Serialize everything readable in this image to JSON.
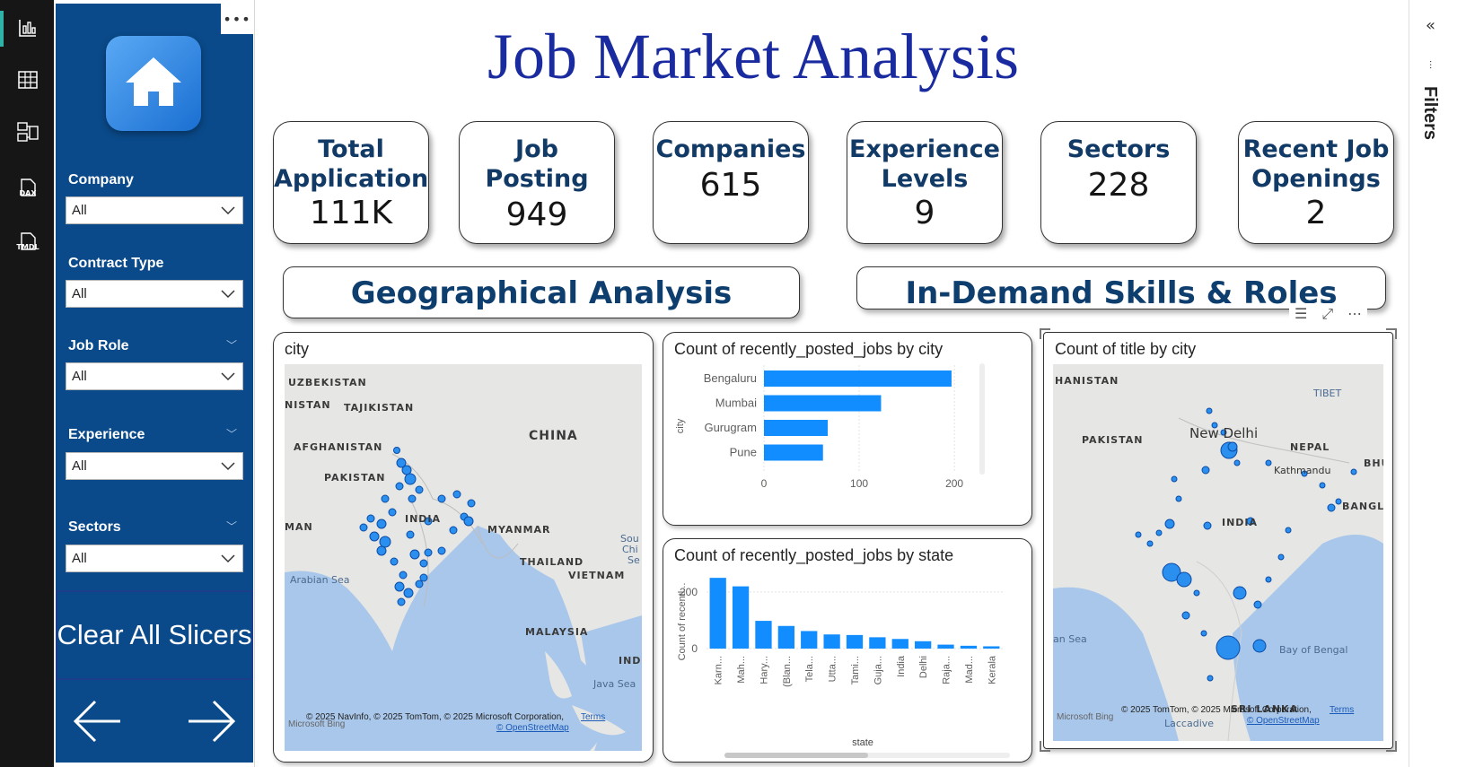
{
  "report": {
    "title": "Job Market Analysis"
  },
  "filters_pane": {
    "label": "Filters"
  },
  "slicers": [
    {
      "label": "Company",
      "value": "All"
    },
    {
      "label": "Contract Type",
      "value": "All"
    },
    {
      "label": "Job Role",
      "value": "All"
    },
    {
      "label": "Experience",
      "value": "All"
    },
    {
      "label": "Sectors",
      "value": "All"
    }
  ],
  "clear_button": {
    "label": "Clear All Slicers"
  },
  "rail": {
    "dax": "DAX",
    "tmdl": "TMDL"
  },
  "kpis": [
    {
      "label": "Total Application",
      "value": "111K"
    },
    {
      "label": "Job Posting",
      "value": "949"
    },
    {
      "label": "Companies",
      "value": "615"
    },
    {
      "label": "Experience Levels",
      "value": "9"
    },
    {
      "label": "Sectors",
      "value": "228"
    },
    {
      "label": "Recent Job Openings",
      "value": "2"
    }
  ],
  "sections": {
    "geo": "Geographical Analysis",
    "skills": "In-Demand Skills & Roles"
  },
  "map_city": {
    "title": "city",
    "labels": [
      "UZBEKISTAN",
      "TAJIKISTAN",
      "AFGHANISTAN",
      "PAKISTAN",
      "CHINA",
      "INDIA",
      "MYANMAR",
      "THAILAND",
      "VIETNAM",
      "MALAYSIA",
      "Arabian Sea",
      "Java Sea",
      "MAN",
      "IND",
      "NISTAN",
      "Sou",
      "Chi",
      "Se"
    ],
    "attribution": "© 2025 NavInfo, © 2025 TomTom, © 2025 Microsoft Corporation,",
    "terms": "Terms",
    "osm": "© OpenStreetMap",
    "bing": "Microsoft Bing"
  },
  "map_title": {
    "title": "Count of title by city",
    "labels": [
      "HANISTAN",
      "PAKISTAN",
      "TIBET",
      "New Delhi",
      "NEPAL",
      "BHU",
      "Kathmandu",
      "INDIA",
      "BANGL",
      "an Sea",
      "Bay of Bengal",
      "Laccadive",
      "SRI LANKA"
    ],
    "attribution": "© 2025 TomTom, © 2025 Microsoft Corporation,",
    "terms": "Terms",
    "osm": "© OpenStreetMap",
    "bing": "Microsoft Bing"
  },
  "chart_data": [
    {
      "type": "bar",
      "orientation": "horizontal",
      "title": "Count of recently_posted_jobs by city",
      "ylabel": "city",
      "xlabel": "",
      "categories": [
        "Bengaluru",
        "Mumbai",
        "Gurugram",
        "Pune"
      ],
      "values": [
        197,
        123,
        67,
        62
      ],
      "xlim": [
        0,
        215
      ],
      "xticks": [
        "0",
        "100",
        "200"
      ],
      "color": "#118DFF",
      "grid": true
    },
    {
      "type": "bar",
      "title": "Count of recently_posted_jobs by state",
      "xlabel": "state",
      "ylabel": "Count of recentl...",
      "categories": [
        "Karn...",
        "Mah...",
        "Hary...",
        "(Blan...",
        "Tela...",
        "Utta...",
        "Tami...",
        "Guja...",
        "India",
        "Delhi",
        "Raja...",
        "Mad...",
        "Kerala"
      ],
      "values": [
        250,
        220,
        98,
        80,
        62,
        50,
        48,
        40,
        34,
        26,
        14,
        10,
        8
      ],
      "ylim": [
        0,
        260
      ],
      "yticks": [
        "0",
        "200"
      ],
      "color": "#118DFF",
      "grid": true
    }
  ]
}
